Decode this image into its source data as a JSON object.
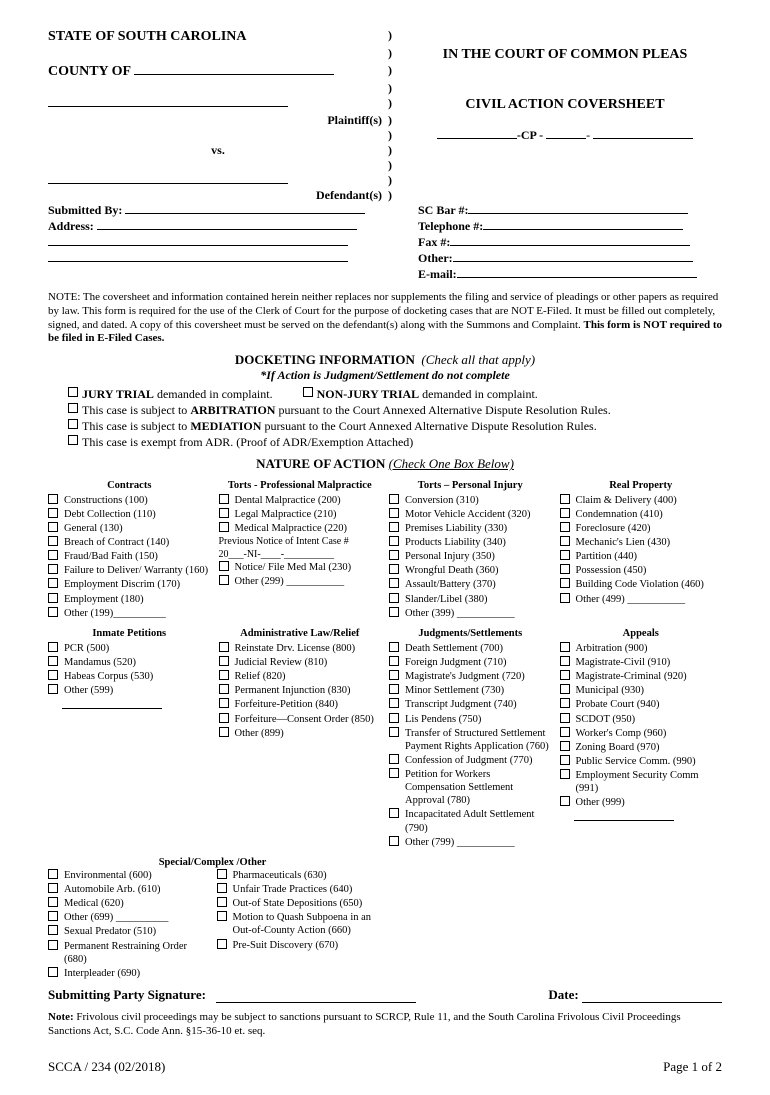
{
  "header": {
    "state": "STATE OF SOUTH CAROLINA",
    "county_label": "COUNTY OF",
    "plaintiffs": "Plaintiff(s)",
    "vs": "vs.",
    "defendants": "Defendant(s)",
    "court": "IN THE COURT OF COMMON PLEAS",
    "doc_title": "CIVIL ACTION COVERSHEET",
    "cp": "-CP -"
  },
  "submitted": {
    "by_label": "Submitted By:",
    "address_label": "Address:",
    "scbar_label": "SC Bar #:",
    "tel_label": "Telephone #:",
    "fax_label": "Fax #:",
    "other_label": "Other:",
    "email_label": "E-mail:"
  },
  "note": "NOTE: The coversheet and information contained herein neither replaces nor supplements the filing and service of pleadings or other papers as required by law. This form is required for the use of the Clerk of Court for the purpose of docketing cases that are NOT E-Filed. It must be filled out completely, signed, and dated. A copy of this coversheet must be served on the defendant(s) along with the Summons and Complaint.",
  "note_bold": "This form is NOT required to be filed in E-Filed Cases.",
  "docketing": {
    "title": "DOCKETING INFORMATION",
    "check": "(Check all that apply)",
    "instr": "*If Action is Judgment/Settlement do not complete",
    "jury": "JURY TRIAL",
    "jury_rest": " demanded in complaint.",
    "nonjury": "NON-JURY TRIAL",
    "nonjury_rest": " demanded in complaint.",
    "arb1": "This case is subject to ",
    "arb2": "ARBITRATION",
    "arb3": " pursuant to the Court Annexed Alternative Dispute Resolution Rules.",
    "med1": "This case is subject to ",
    "med2": "MEDIATION",
    "med3": " pursuant to the Court Annexed Alternative Dispute Resolution Rules.",
    "adr": "This case is exempt from ADR. (Proof of ADR/Exemption Attached)"
  },
  "nature": {
    "title": "NATURE OF ACTION",
    "check": "(Check One Box Below)",
    "contracts": {
      "hdg": "Contracts",
      "items": [
        "Constructions (100)",
        "Debt Collection (110)",
        "General (130)",
        "Breach of Contract (140)",
        "Fraud/Bad Faith (150)",
        "Failure to Deliver/ Warranty (160)",
        "Employment Discrim (170)",
        "Employment (180)",
        "Other (199)__________"
      ]
    },
    "torts_prof": {
      "hdg": "Torts - Professional Malpractice",
      "items": [
        "Dental Malpractice (200)",
        "Legal Malpractice (210)",
        "Medical Malpractice (220)"
      ],
      "notice_label": "Previous Notice of Intent Case #",
      "notice_fmt": "20___-NI-____-__________",
      "items2": [
        "Notice/ File Med Mal (230)",
        "Other (299) ___________"
      ]
    },
    "torts_pi": {
      "hdg": "Torts – Personal Injury",
      "items": [
        "Conversion (310)",
        "Motor Vehicle Accident (320)",
        "Premises Liability (330)",
        "Products Liability (340)",
        "Personal Injury (350)",
        "Wrongful Death (360)",
        "Assault/Battery (370)",
        "Slander/Libel (380)",
        "Other (399) ___________"
      ]
    },
    "real_prop": {
      "hdg": "Real Property",
      "items": [
        "Claim & Delivery (400)",
        "Condemnation (410)",
        "Foreclosure (420)",
        "Mechanic's Lien (430)",
        "Partition (440)",
        "Possession (450)",
        "Building Code Violation (460)",
        "Other (499) ___________"
      ]
    },
    "inmate": {
      "hdg": "Inmate Petitions",
      "items": [
        "PCR (500)",
        "Mandamus (520)",
        "Habeas Corpus (530)",
        "Other (599)"
      ]
    },
    "admin": {
      "hdg": "Administrative Law/Relief",
      "items": [
        "Reinstate Drv. License (800)",
        "Judicial Review (810)",
        "Relief (820)",
        "Permanent Injunction (830)",
        "Forfeiture-Petition (840)",
        "Forfeiture—Consent Order (850)",
        "Other (899)"
      ]
    },
    "judgments": {
      "hdg": "Judgments/Settlements",
      "items": [
        "Death Settlement (700)",
        "Foreign Judgment (710)",
        "Magistrate's Judgment (720)",
        "Minor Settlement (730)",
        "Transcript Judgment (740)",
        "Lis Pendens (750)",
        "Transfer of Structured Settlement Payment  Rights Application (760)",
        "Confession of Judgment (770)",
        "Petition for Workers Compensation Settlement Approval (780)",
        "Incapacitated Adult Settlement (790)",
        "Other (799) ___________"
      ]
    },
    "appeals": {
      "hdg": "Appeals",
      "items": [
        "Arbitration (900)",
        "Magistrate-Civil (910)",
        "Magistrate-Criminal  (920)",
        "Municipal (930)",
        "Probate Court (940)",
        "SCDOT (950)",
        "Worker's Comp (960)",
        "Zoning Board (970)",
        "Public Service Comm. (990)",
        "Employment Security Comm (991)",
        "Other (999)"
      ]
    },
    "special": {
      "hdg": "Special/Complex /Other",
      "left": [
        "Environmental (600)",
        "Automobile Arb. (610)",
        "Medical (620)",
        "Other (699) __________",
        "Sexual Predator (510)",
        "Permanent Restraining Order (680)",
        "Interpleader (690)"
      ],
      "right": [
        "Pharmaceuticals (630)",
        "Unfair Trade Practices (640)",
        "Out-of State Depositions (650)",
        "Motion to Quash Subpoena in an Out-of-County Action (660)",
        "Pre-Suit Discovery (670)"
      ]
    }
  },
  "sig": {
    "label": "Submitting Party Signature:",
    "date": "Date:"
  },
  "bottom_note_bold": "Note:",
  "bottom_note": " Frivolous civil proceedings  may be subject to sanctions pursuant to SCRCP, Rule 11, and the South Carolina Frivolous Civil Proceedings Sanctions Act, S.C. Code Ann. §15-36-10 et. seq.",
  "footer": {
    "form": "SCCA / 234 (02/2018)",
    "page": "Page 1 of 2"
  }
}
